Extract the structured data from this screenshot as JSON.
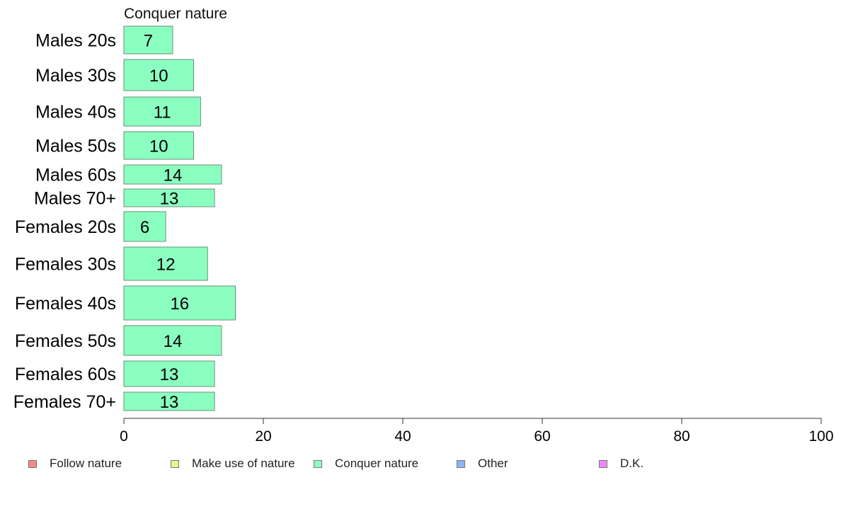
{
  "chart_data": {
    "type": "bar",
    "orientation": "horizontal",
    "title": "Conquer nature",
    "categories": [
      "Males 20s",
      "Males 30s",
      "Males 40s",
      "Males 50s",
      "Males 60s",
      "Males 70+",
      "Females 20s",
      "Females 30s",
      "Females 40s",
      "Females 50s",
      "Females 60s",
      "Females 70+"
    ],
    "series": [
      {
        "name": "Conquer nature",
        "values": [
          7,
          10,
          11,
          10,
          14,
          13,
          6,
          12,
          16,
          14,
          13,
          13
        ],
        "labels": [
          "7",
          "10",
          "11",
          "10",
          "14",
          "13",
          "6",
          "12",
          "16",
          "14",
          "13",
          "13"
        ]
      }
    ],
    "x_ticks": [
      0,
      20,
      40,
      60,
      80,
      100
    ],
    "x_tick_labels": [
      "0",
      "20",
      "40",
      "60",
      "80",
      "100"
    ],
    "xlim": [
      0,
      100
    ],
    "grid": false,
    "bar_color": "#8bffc0",
    "legend": {
      "placement": "bottom",
      "items": [
        {
          "label": "Follow nature",
          "color": "#f28b82"
        },
        {
          "label": "Make use of nature",
          "color": "#eaf58a"
        },
        {
          "label": "Conquer nature",
          "color": "#8bffc0"
        },
        {
          "label": "Other",
          "color": "#8ab4f8"
        },
        {
          "label": "D.K.",
          "color": "#e98bf5"
        }
      ]
    }
  }
}
